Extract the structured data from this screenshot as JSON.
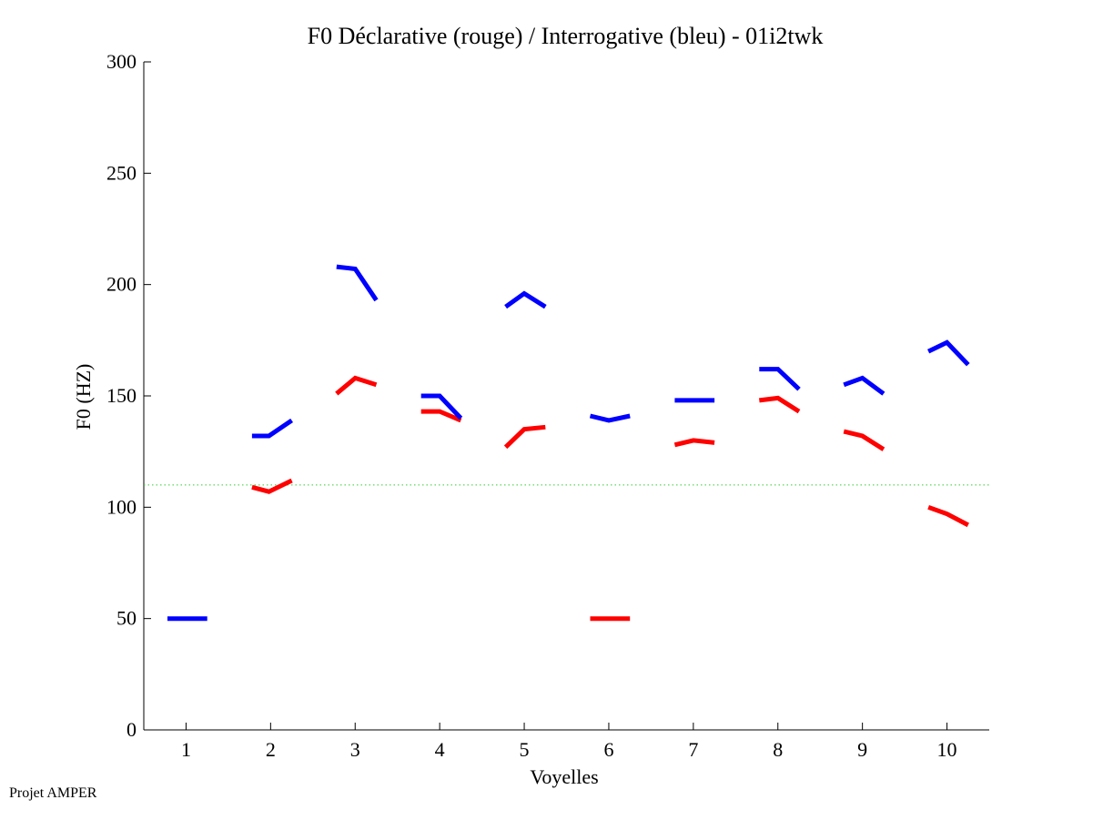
{
  "chart_data": {
    "type": "line",
    "title": "F0 Déclarative (rouge) / Interrogative (bleu) - 01i2twk",
    "xlabel": "Voyelles",
    "ylabel": "F0 (HZ)",
    "xlim": [
      0.5,
      10.5
    ],
    "ylim": [
      0,
      300
    ],
    "xticks": [
      1,
      2,
      3,
      4,
      5,
      6,
      7,
      8,
      9,
      10
    ],
    "yticks": [
      0,
      50,
      100,
      150,
      200,
      250,
      300
    ],
    "reference_line": {
      "y": 110,
      "color": "#33cc33",
      "style": "dotted"
    },
    "series": [
      {
        "name": "Déclarative (rouge)",
        "color": "#ff0000",
        "segments": [
          {
            "vowel": 2,
            "x": [
              1.78,
              1.98,
              2.25
            ],
            "y": [
              109,
              107,
              112
            ]
          },
          {
            "vowel": 3,
            "x": [
              2.78,
              3.0,
              3.25
            ],
            "y": [
              151,
              158,
              155
            ]
          },
          {
            "vowel": 4,
            "x": [
              3.78,
              4.0,
              4.25
            ],
            "y": [
              143,
              143,
              139
            ]
          },
          {
            "vowel": 5,
            "x": [
              4.78,
              5.0,
              5.25
            ],
            "y": [
              127,
              135,
              136
            ]
          },
          {
            "vowel": 6,
            "x": [
              5.78,
              6.0,
              6.25
            ],
            "y": [
              50,
              50,
              50
            ]
          },
          {
            "vowel": 7,
            "x": [
              6.78,
              7.0,
              7.25
            ],
            "y": [
              128,
              130,
              129
            ]
          },
          {
            "vowel": 8,
            "x": [
              7.78,
              8.0,
              8.25
            ],
            "y": [
              148,
              149,
              143
            ]
          },
          {
            "vowel": 9,
            "x": [
              8.78,
              9.0,
              9.25
            ],
            "y": [
              134,
              132,
              126
            ]
          },
          {
            "vowel": 10,
            "x": [
              9.78,
              10.0,
              10.25
            ],
            "y": [
              100,
              97,
              92
            ]
          }
        ]
      },
      {
        "name": "Interrogative (bleu)",
        "color": "#0000ff",
        "segments": [
          {
            "vowel": 1,
            "x": [
              0.78,
              1.0,
              1.25
            ],
            "y": [
              50,
              50,
              50
            ]
          },
          {
            "vowel": 2,
            "x": [
              1.78,
              1.98,
              2.25
            ],
            "y": [
              132,
              132,
              139
            ]
          },
          {
            "vowel": 3,
            "x": [
              2.78,
              3.0,
              3.25
            ],
            "y": [
              208,
              207,
              193
            ]
          },
          {
            "vowel": 4,
            "x": [
              3.78,
              4.0,
              4.25
            ],
            "y": [
              150,
              150,
              140
            ]
          },
          {
            "vowel": 5,
            "x": [
              4.78,
              5.0,
              5.25
            ],
            "y": [
              190,
              196,
              190
            ]
          },
          {
            "vowel": 6,
            "x": [
              5.78,
              6.0,
              6.25
            ],
            "y": [
              141,
              139,
              141
            ]
          },
          {
            "vowel": 7,
            "x": [
              6.78,
              7.0,
              7.25
            ],
            "y": [
              148,
              148,
              148
            ]
          },
          {
            "vowel": 8,
            "x": [
              7.78,
              8.0,
              8.25
            ],
            "y": [
              162,
              162,
              153
            ]
          },
          {
            "vowel": 9,
            "x": [
              8.78,
              9.0,
              9.25
            ],
            "y": [
              155,
              158,
              151
            ]
          },
          {
            "vowel": 10,
            "x": [
              9.78,
              10.0,
              10.25
            ],
            "y": [
              170,
              174,
              164
            ]
          }
        ]
      }
    ]
  },
  "footer": {
    "credit": "Projet AMPER"
  }
}
